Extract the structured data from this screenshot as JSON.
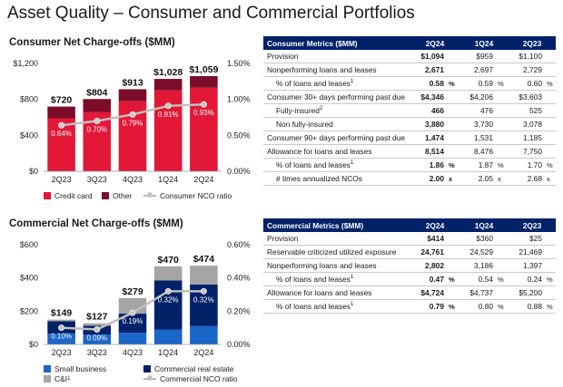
{
  "page_title": "Asset Quality – Consumer and Commercial Portfolios",
  "consumer_chart": {
    "title": "Consumer Net Charge-offs ($MM)",
    "left_ticks": [
      "$1,200",
      "$800",
      "$400",
      "$0"
    ],
    "right_ticks": [
      "1.50%",
      "1.00%",
      "0.50%",
      "0.00%"
    ],
    "legend": [
      "Credit card",
      "Other",
      "Consumer NCO ratio"
    ],
    "totals_labels": [
      "$720",
      "$804",
      "$913",
      "$1,028",
      "$1,059"
    ],
    "ratio_labels": [
      "0.64%",
      "0.70%",
      "0.79%",
      "0.91%",
      "0.93%"
    ]
  },
  "commercial_chart": {
    "title": "Commercial Net Charge-offs ($MM)",
    "left_ticks": [
      "$600",
      "$400",
      "$200",
      "$0"
    ],
    "right_ticks": [
      "0.60%",
      "0.40%",
      "0.20%",
      "0.00%"
    ],
    "legend": [
      "Small business",
      "Commercial real estate",
      "C&I",
      "Commercial NCO ratio"
    ],
    "c_and_i_footnote": "1",
    "totals_labels": [
      "$149",
      "$127",
      "$279",
      "$470",
      "$474"
    ],
    "ratio_labels": [
      "0.10%",
      "0.09%",
      "0.19%",
      "0.32%",
      "0.32%"
    ]
  },
  "chart_data": [
    {
      "type": "bar",
      "title": "Consumer Net Charge-offs ($MM)",
      "categories": [
        "2Q23",
        "3Q23",
        "4Q23",
        "1Q24",
        "2Q24"
      ],
      "series": [
        {
          "name": "Credit card",
          "values": [
            590,
            660,
            780,
            900,
            930
          ],
          "color": "#e31837"
        },
        {
          "name": "Other",
          "values": [
            130,
            144,
            133,
            128,
            129
          ],
          "color": "#7b0c2a"
        },
        {
          "name": "Consumer NCO ratio",
          "values": [
            0.64,
            0.7,
            0.79,
            0.91,
            0.93
          ],
          "axis": "right",
          "chart": "line",
          "color": "#c4c4c4"
        }
      ],
      "totals": [
        720,
        804,
        913,
        1028,
        1059
      ],
      "ylim": [
        0,
        1200
      ],
      "y2lim": [
        0,
        1.5
      ],
      "legend_position": "bottom"
    },
    {
      "type": "bar",
      "title": "Commercial Net Charge-offs ($MM)",
      "categories": [
        "2Q23",
        "3Q23",
        "4Q23",
        "1Q24",
        "2Q24"
      ],
      "series": [
        {
          "name": "Small business",
          "values": [
            65,
            60,
            70,
            90,
            110
          ],
          "color": "#1a66c9"
        },
        {
          "name": "Commercial real estate",
          "values": [
            74,
            52,
            115,
            295,
            250
          ],
          "color": "#012169"
        },
        {
          "name": "C&I",
          "values": [
            10,
            15,
            94,
            85,
            114
          ],
          "color": "#a5a5a5"
        },
        {
          "name": "Commercial NCO ratio",
          "values": [
            0.1,
            0.09,
            0.19,
            0.32,
            0.32
          ],
          "axis": "right",
          "chart": "line",
          "color": "#c4c4c4"
        }
      ],
      "totals": [
        149,
        127,
        279,
        470,
        474
      ],
      "ylim": [
        0,
        600
      ],
      "y2lim": [
        0,
        0.6
      ],
      "legend_position": "bottom"
    }
  ],
  "consumer_table": {
    "headers": [
      "Consumer Metrics ($MM)",
      "2Q24",
      "1Q24",
      "2Q23"
    ],
    "rows": [
      {
        "label": "Provision",
        "sup": "",
        "indent": false,
        "v": [
          "$1,094",
          "$959",
          "$1,100"
        ],
        "u": [
          "",
          "",
          ""
        ]
      },
      {
        "label": "Nonperforming loans and leases",
        "sup": "",
        "indent": false,
        "v": [
          "2,671",
          "2,697",
          "2,729"
        ],
        "u": [
          "",
          "",
          ""
        ]
      },
      {
        "label": "% of loans and leases",
        "sup": "1",
        "indent": true,
        "v": [
          "0.58",
          "0.59",
          "0.60"
        ],
        "u": [
          "%",
          "%",
          "%"
        ]
      },
      {
        "label": "Consumer 30+ days performing past due",
        "sup": "",
        "indent": false,
        "v": [
          "$4,346",
          "$4,206",
          "$3,603"
        ],
        "u": [
          "",
          "",
          ""
        ]
      },
      {
        "label": "Fully-insured",
        "sup": "2",
        "indent": true,
        "v": [
          "466",
          "476",
          "525"
        ],
        "u": [
          "",
          "",
          ""
        ]
      },
      {
        "label": "Non fully-insured",
        "sup": "",
        "indent": true,
        "v": [
          "3,880",
          "3,730",
          "3,078"
        ],
        "u": [
          "",
          "",
          ""
        ]
      },
      {
        "label": "Consumer 90+ days performing past due",
        "sup": "",
        "indent": false,
        "v": [
          "1,474",
          "1,531",
          "1,185"
        ],
        "u": [
          "",
          "",
          ""
        ]
      },
      {
        "label": "Allowance for loans and leases",
        "sup": "",
        "indent": false,
        "v": [
          "8,514",
          "8,476",
          "7,750"
        ],
        "u": [
          "",
          "",
          ""
        ]
      },
      {
        "label": "% of loans and leases",
        "sup": "1",
        "indent": true,
        "v": [
          "1.86",
          "1.87",
          "1.70"
        ],
        "u": [
          "%",
          "%",
          "%"
        ]
      },
      {
        "label": "# times annualized NCOs",
        "sup": "",
        "indent": true,
        "v": [
          "2.00",
          "2.05",
          "2.68"
        ],
        "u": [
          "x",
          "x",
          "x"
        ]
      }
    ]
  },
  "commercial_table": {
    "headers": [
      "Commercial Metrics ($MM)",
      "2Q24",
      "1Q24",
      "2Q23"
    ],
    "rows": [
      {
        "label": "Provision",
        "sup": "",
        "indent": false,
        "v": [
          "$414",
          "$360",
          "$25"
        ],
        "u": [
          "",
          "",
          ""
        ]
      },
      {
        "label": "Reservable criticized utilized exposure",
        "sup": "",
        "indent": false,
        "v": [
          "24,761",
          "24,529",
          "21,469"
        ],
        "u": [
          "",
          "",
          ""
        ]
      },
      {
        "label": "Nonperforming loans and leases",
        "sup": "",
        "indent": false,
        "v": [
          "2,802",
          "3,186",
          "1,397"
        ],
        "u": [
          "",
          "",
          ""
        ]
      },
      {
        "label": "% of loans and leases",
        "sup": "1",
        "indent": true,
        "v": [
          "0.47",
          "0.54",
          "0.24"
        ],
        "u": [
          "%",
          "%",
          "%"
        ]
      },
      {
        "label": "Allowance for loans and leases",
        "sup": "",
        "indent": false,
        "v": [
          "$4,724",
          "$4,737",
          "$5,200"
        ],
        "u": [
          "",
          "",
          ""
        ]
      },
      {
        "label": "% of loans and leases",
        "sup": "1",
        "indent": true,
        "v": [
          "0.79",
          "0.80",
          "0.88"
        ],
        "u": [
          "%",
          "%",
          "%"
        ]
      }
    ]
  }
}
